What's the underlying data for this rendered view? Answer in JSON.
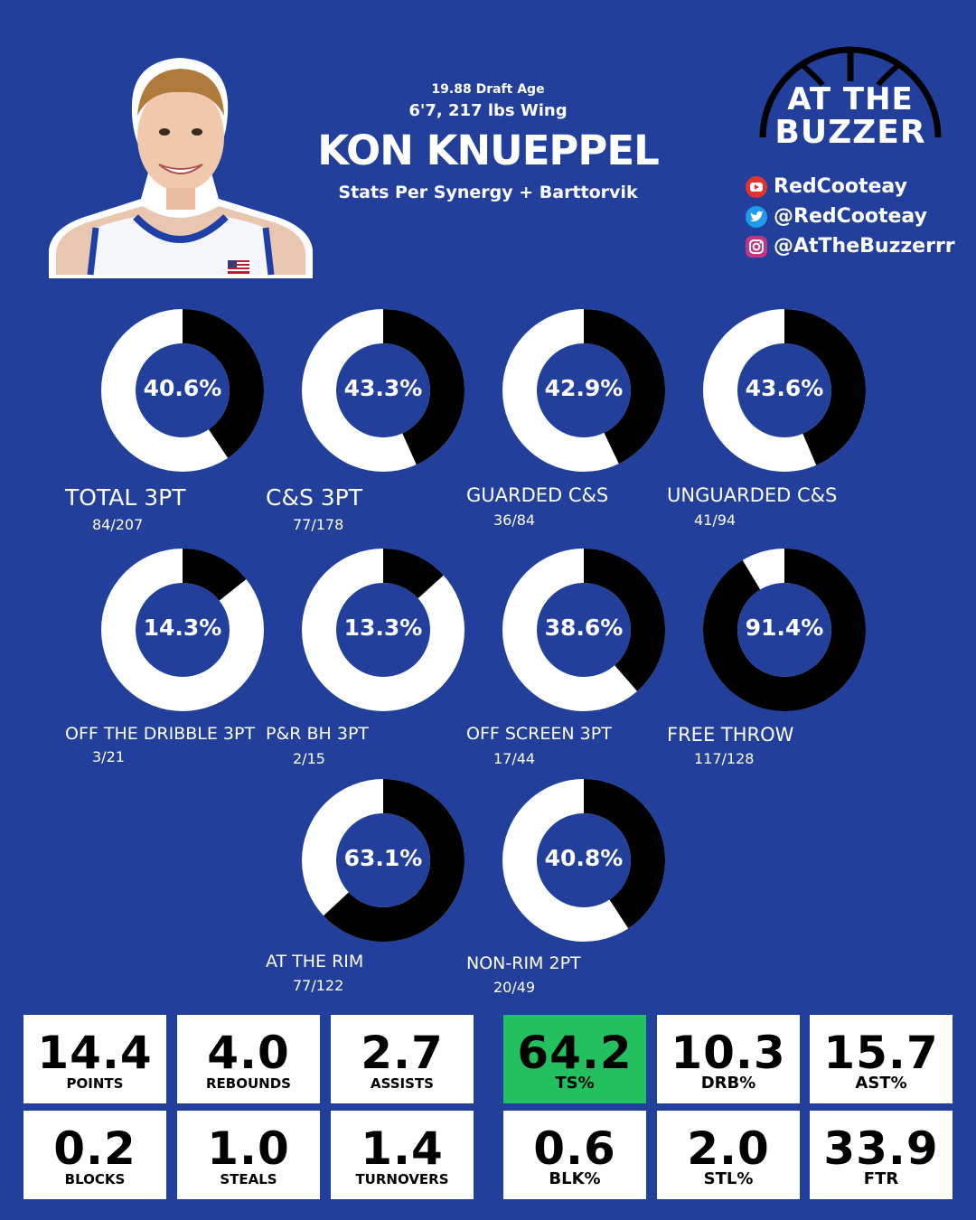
{
  "header": {
    "draft_age": "19.88 Draft Age",
    "size": "6'7, 217 lbs Wing",
    "player_name": "KON KNUEPPEL",
    "source": "Stats Per Synergy + Barttorvik"
  },
  "logo": {
    "line1": "AT THE",
    "line2": "BUZZER"
  },
  "socials": [
    {
      "icon": "youtube-icon",
      "handle": "RedCooteay",
      "color": "#e5322d"
    },
    {
      "icon": "twitter-icon",
      "handle": "@RedCooteay",
      "color": "#1d9bf0"
    },
    {
      "icon": "instagram-icon",
      "handle": "@AtTheBuzzerrr",
      "color": "#c13584"
    }
  ],
  "donuts": [
    {
      "pct_text": "40.6%",
      "value": 40.6,
      "label": "TOTAL 3PT",
      "count": "84/207"
    },
    {
      "pct_text": "43.3%",
      "value": 43.3,
      "label": "C&S 3PT",
      "count": "77/178"
    },
    {
      "pct_text": "42.9%",
      "value": 42.9,
      "label": "GUARDED C&S",
      "count": "36/84"
    },
    {
      "pct_text": "43.6%",
      "value": 43.6,
      "label": "UNGUARDED C&S",
      "count": "41/94"
    },
    {
      "pct_text": "14.3%",
      "value": 14.3,
      "label": "OFF THE DRIBBLE 3PT",
      "count": "3/21"
    },
    {
      "pct_text": "13.3%",
      "value": 13.3,
      "label": "P&R BH 3PT",
      "count": "2/15"
    },
    {
      "pct_text": "38.6%",
      "value": 38.6,
      "label": "OFF SCREEN 3PT",
      "count": "17/44"
    },
    {
      "pct_text": "91.4%",
      "value": 91.4,
      "label": "FREE THROW",
      "count": "117/128"
    },
    {
      "pct_text": "63.1%",
      "value": 63.1,
      "label": "AT THE RIM",
      "count": "77/122"
    },
    {
      "pct_text": "40.8%",
      "value": 40.8,
      "label": "NON-RIM 2PT",
      "count": "20/49"
    }
  ],
  "stats": [
    {
      "value": "14.4",
      "label": "POINTS"
    },
    {
      "value": "4.0",
      "label": "REBOUNDS"
    },
    {
      "value": "2.7",
      "label": "ASSISTS"
    },
    {
      "value": "64.2",
      "label": "TS%",
      "highlight": "#22c05e"
    },
    {
      "value": "10.3",
      "label": "DRB%"
    },
    {
      "value": "15.7",
      "label": "AST%"
    },
    {
      "value": "0.2",
      "label": "BLOCKS"
    },
    {
      "value": "1.0",
      "label": "STEALS"
    },
    {
      "value": "1.4",
      "label": "TURNOVERS"
    },
    {
      "value": "0.6",
      "label": "BLK%"
    },
    {
      "value": "2.0",
      "label": "STL%"
    },
    {
      "value": "33.9",
      "label": "FTR"
    }
  ],
  "colors": {
    "background": "#22409b",
    "ring_fill": "#000000",
    "ring_track": "#ffffff",
    "highlight": "#22c05e"
  }
}
